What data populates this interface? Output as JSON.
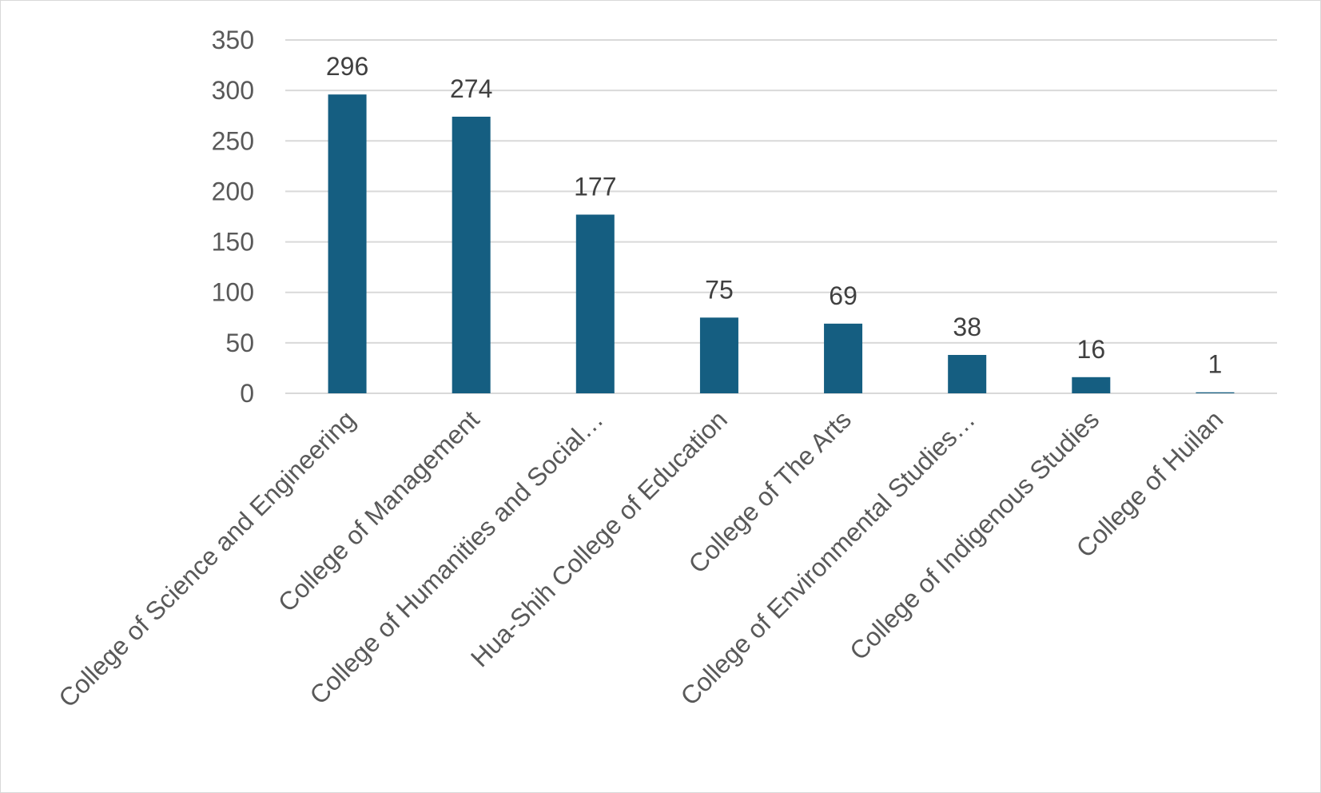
{
  "chart_data": {
    "type": "bar",
    "title": "",
    "xlabel": "",
    "ylabel": "",
    "categories": [
      "College of Science and Engineering",
      "College of Management",
      "College of Humanities and Social…",
      "Hua-Shih College of Education",
      "College of The Arts",
      "College of Environmental Studies…",
      "College of Indigenous Studies",
      "College of Huilan"
    ],
    "values": [
      296,
      274,
      177,
      75,
      69,
      38,
      16,
      1
    ],
    "data_labels": [
      "296",
      "274",
      "177",
      "75",
      "69",
      "38",
      "16",
      "1"
    ],
    "ylim": [
      0,
      350
    ],
    "yticks": [
      0,
      50,
      100,
      150,
      200,
      250,
      300,
      350
    ],
    "ytick_labels": [
      "0",
      "50",
      "100",
      "150",
      "200",
      "250",
      "300",
      "350"
    ],
    "grid": true,
    "legend": "none",
    "bar_color": "#155e81",
    "gridline_color": "#d9d9d9"
  }
}
